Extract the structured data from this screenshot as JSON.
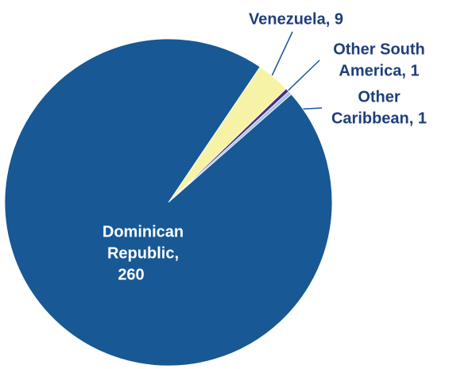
{
  "chart_data": {
    "type": "pie",
    "values": [
      260,
      9,
      1,
      1
    ],
    "value_labels": [
      [
        "Dominican",
        "Republic,",
        "260"
      ],
      [
        "Venezuela, 9"
      ],
      [
        "Other South",
        "America, 1"
      ],
      [
        "Other",
        "Caribbean, 1"
      ]
    ],
    "colors": [
      "#175895",
      "#f7f3a6",
      "#4a2f7a",
      "#a8c2e6"
    ]
  }
}
